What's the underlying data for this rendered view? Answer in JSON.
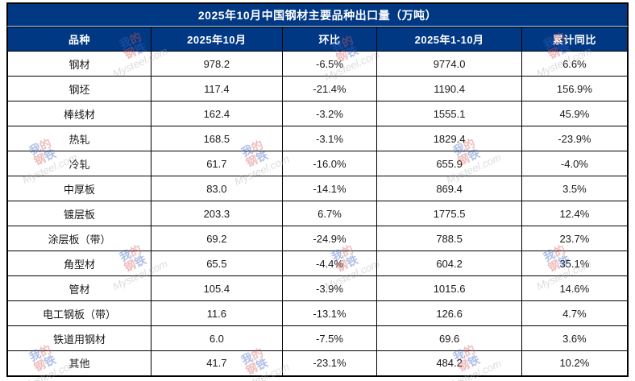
{
  "chart_data": {
    "type": "table",
    "title": "2025年10月中国钢材主要品种出口量（万吨）",
    "columns": [
      "品种",
      "2025年10月",
      "环比",
      "2025年1-10月",
      "累计同比"
    ],
    "rows": [
      [
        "钢材",
        "978.2",
        "-6.5%",
        "9774.0",
        "6.6%"
      ],
      [
        "钢坯",
        "117.4",
        "-21.4%",
        "1190.4",
        "156.9%"
      ],
      [
        "棒线材",
        "162.4",
        "-3.2%",
        "1555.1",
        "45.9%"
      ],
      [
        "热轧",
        "168.5",
        "-3.1%",
        "1829.4",
        "-23.9%"
      ],
      [
        "冷轧",
        "61.7",
        "-16.0%",
        "655.9",
        "-4.0%"
      ],
      [
        "中厚板",
        "83.0",
        "-14.1%",
        "869.4",
        "3.5%"
      ],
      [
        "镀层板",
        "203.3",
        "6.7%",
        "1775.5",
        "12.4%"
      ],
      [
        "涂层板（带）",
        "69.2",
        "-24.9%",
        "788.5",
        "23.7%"
      ],
      [
        "角型材",
        "65.5",
        "-4.4%",
        "604.2",
        "35.1%"
      ],
      [
        "管材",
        "105.4",
        "-3.9%",
        "1015.6",
        "14.6%"
      ],
      [
        "电工钢板（带）",
        "11.6",
        "-13.1%",
        "126.6",
        "4.7%"
      ],
      [
        "铁道用钢材",
        "6.0",
        "-7.5%",
        "69.6",
        "3.6%"
      ],
      [
        "其他",
        "41.7",
        "-23.1%",
        "484.2",
        "10.2%"
      ]
    ],
    "link_row_index": 1
  },
  "watermark": {
    "chars": [
      "我",
      "的",
      "钢",
      "铁"
    ],
    "text": "Mysteel.com"
  },
  "colors": {
    "header_bg": "#003884",
    "link_text": "#4472c4",
    "border": "#000000",
    "watermark_red": "#d85c5c",
    "watermark_blue": "#3a62c0"
  }
}
